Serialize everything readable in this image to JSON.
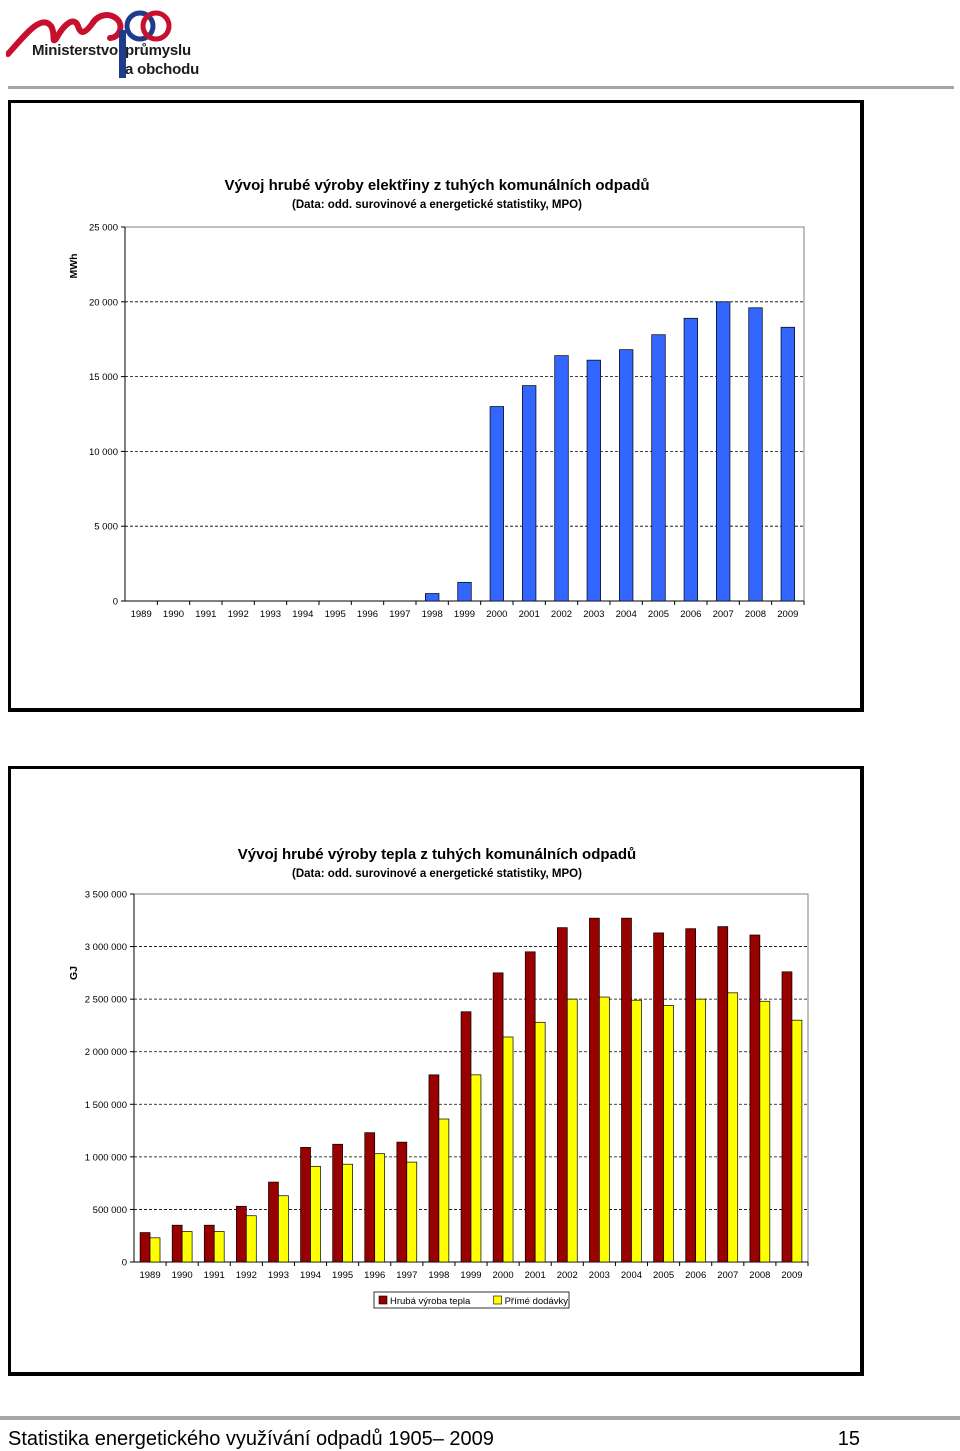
{
  "header": {
    "logo_mark": "mpo",
    "logo_line1": "Ministerstvo",
    "logo_line2": "průmyslu",
    "logo_line3": "a obchodu",
    "logo_color": "#c8102e",
    "logo_accent": "#1f3c8c"
  },
  "footer": {
    "title": "Statistika energetického využívání odpadů 1905– 2009",
    "page_number": "15"
  },
  "chart_data": [
    {
      "type": "bar",
      "title": "Vývoj hrubé výroby elektřiny z tuhých komunálních odpadů",
      "subtitle": "(Data: odd. surovinové a energetické statistiky, MPO)",
      "ylabel": "MWh",
      "xlabel": "",
      "ylim": [
        0,
        25000
      ],
      "yticks": [
        0,
        5000,
        10000,
        15000,
        20000,
        25000
      ],
      "ytick_labels": [
        "0",
        "5 000",
        "10 000",
        "15 000",
        "20 000",
        "25 000"
      ],
      "grid": true,
      "categories": [
        "1989",
        "1990",
        "1991",
        "1992",
        "1993",
        "1994",
        "1995",
        "1996",
        "1997",
        "1998",
        "1999",
        "2000",
        "2001",
        "2002",
        "2003",
        "2004",
        "2005",
        "2006",
        "2007",
        "2008",
        "2009"
      ],
      "series": [
        {
          "color": "#3366ff",
          "values": [
            0,
            0,
            0,
            0,
            0,
            0,
            0,
            0,
            0,
            500,
            1250,
            13000,
            14400,
            16400,
            16100,
            16800,
            17800,
            18900,
            20000,
            19600,
            18300
          ]
        }
      ]
    },
    {
      "type": "bar",
      "title": "Vývoj hrubé výroby tepla z tuhých komunálních odpadů",
      "subtitle": "(Data: odd. surovinové a energetické statistiky, MPO)",
      "ylabel": "GJ",
      "xlabel": "",
      "ylim": [
        0,
        3500000
      ],
      "yticks": [
        0,
        500000,
        1000000,
        1500000,
        2000000,
        2500000,
        3000000,
        3500000
      ],
      "ytick_labels": [
        "0",
        "500 000",
        "1 000 000",
        "1 500 000",
        "2 000 000",
        "2 500 000",
        "3 000 000",
        "3 500 000"
      ],
      "grid": true,
      "legend_position": "bottom",
      "categories": [
        "1989",
        "1990",
        "1991",
        "1992",
        "1993",
        "1994",
        "1995",
        "1996",
        "1997",
        "1998",
        "1999",
        "2000",
        "2001",
        "2002",
        "2003",
        "2004",
        "2005",
        "2006",
        "2007",
        "2008",
        "2009"
      ],
      "series": [
        {
          "name": "Hrubá výroba tepla",
          "color": "#990000",
          "values": [
            280000,
            350000,
            350000,
            530000,
            760000,
            1090000,
            1120000,
            1230000,
            1140000,
            1780000,
            2380000,
            2750000,
            2950000,
            3180000,
            3270000,
            3270000,
            3130000,
            3170000,
            3190000,
            3110000,
            2760000
          ]
        },
        {
          "name": "Přímé dodávky",
          "color": "#ffff00",
          "values": [
            230000,
            290000,
            290000,
            440000,
            630000,
            910000,
            930000,
            1030000,
            950000,
            1360000,
            1780000,
            2140000,
            2280000,
            2500000,
            2520000,
            2490000,
            2440000,
            2500000,
            2560000,
            2480000,
            2300000
          ]
        }
      ]
    }
  ]
}
